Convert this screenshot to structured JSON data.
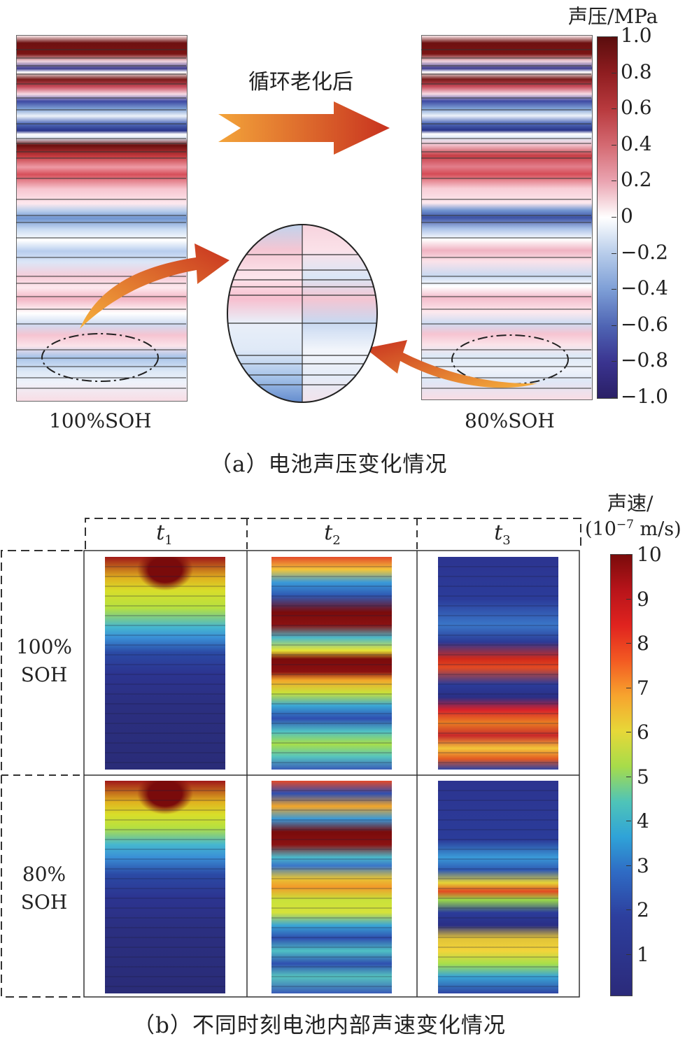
{
  "panel_a": {
    "cbar_title": "声压/MPa",
    "cbar_ticks": [
      "1.0",
      "0.8",
      "0.6",
      "0.4",
      "0.2",
      "0",
      "−0.2",
      "−0.4",
      "−0.6",
      "−0.8",
      "−1.0"
    ],
    "arrow_label": "循环老化后",
    "left_label": "100%SOH",
    "right_label": "80%SOH",
    "caption": "（a）电池声压变化情况"
  },
  "panel_b": {
    "cbar_title_line1": "声速/",
    "cbar_title_line2": "(10",
    "cbar_title_exp": "−7",
    "cbar_title_unit": " m/s)",
    "cbar_ticks": [
      "10",
      "9",
      "8",
      "7",
      "6",
      "5",
      "4",
      "3",
      "2",
      "1"
    ],
    "col_headers": [
      {
        "base": "t",
        "sub": "1"
      },
      {
        "base": "t",
        "sub": "2"
      },
      {
        "base": "t",
        "sub": "3"
      }
    ],
    "row_headers": [
      {
        "line1": "100%",
        "line2": "SOH"
      },
      {
        "line1": "80%",
        "line2": "SOH"
      }
    ],
    "caption": "（b）不同时刻电池内部声速变化情况"
  },
  "colors": {
    "pressure_high": "#6b0f0f",
    "pressure_low": "#3b2a7a",
    "arrow": "#d9452b",
    "velocity_high": "#7a0b0b",
    "velocity_low": "#2b2a7a"
  }
}
